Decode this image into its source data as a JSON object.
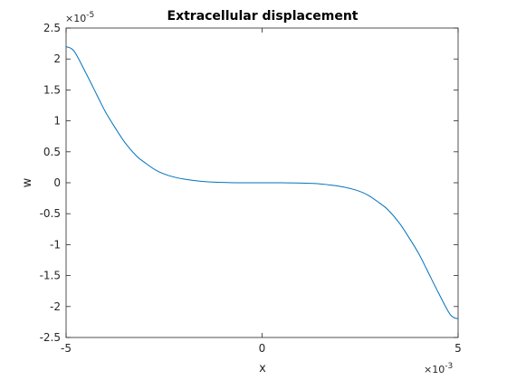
{
  "chart_data": {
    "type": "line",
    "title": "Extracellular displacement",
    "xlabel": "x",
    "ylabel": "w",
    "x_multiplier_label": "×10",
    "x_multiplier_exp": "-3",
    "y_multiplier_label": "×10",
    "y_multiplier_exp": "-5",
    "xlim": [
      -5,
      5
    ],
    "ylim": [
      -2.5,
      2.5
    ],
    "x_ticks": [
      -5,
      0,
      5
    ],
    "x_tick_labels": [
      "-5",
      "0",
      "5"
    ],
    "y_ticks": [
      2.5,
      2,
      1.5,
      1,
      0.5,
      0,
      -0.5,
      -1,
      -1.5,
      -2,
      -2.5
    ],
    "y_tick_labels": [
      "2.5",
      "2",
      "1.5",
      "1",
      "0.5",
      "0",
      "-0.5",
      "-1",
      "-1.5",
      "-2",
      "-2.5"
    ],
    "grid": false,
    "line_color": "#0072bd",
    "series": [
      {
        "x": [
          -5,
          -4.8,
          -4.5,
          -4.2,
          -4,
          -3.8,
          -3.5,
          -3.2,
          -3,
          -2.7,
          -2.4,
          -2,
          -1.5,
          -1,
          -0.5,
          0,
          0.5,
          1,
          1.5,
          2,
          2.4,
          2.7,
          3,
          3.2,
          3.5,
          3.8,
          4,
          4.2,
          4.5,
          4.8,
          5
        ],
        "y": [
          2.2,
          2.13,
          1.78,
          1.4,
          1.15,
          0.94,
          0.65,
          0.43,
          0.33,
          0.2,
          0.12,
          0.06,
          0.02,
          0.005,
          0.0,
          0.0,
          0.0,
          -0.005,
          -0.02,
          -0.06,
          -0.12,
          -0.2,
          -0.33,
          -0.43,
          -0.65,
          -0.94,
          -1.15,
          -1.4,
          -1.78,
          -2.13,
          -2.2
        ]
      }
    ]
  }
}
